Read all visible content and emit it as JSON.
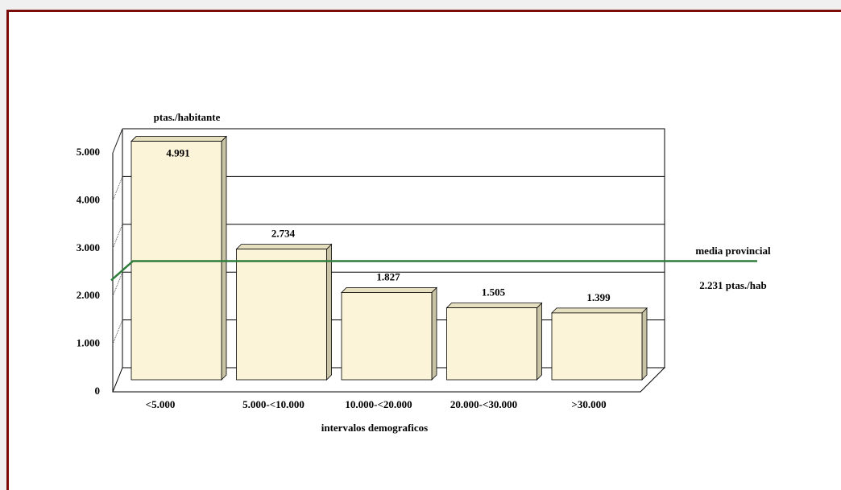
{
  "chart_data": {
    "type": "bar3d",
    "y_label": "ptas./habitante",
    "x_label": "intervalos demograficos",
    "categories": [
      "<5.000",
      "5.000-<10.000",
      "10.000-<20.000",
      "20.000-<30.000",
      ">30.000"
    ],
    "values": [
      4991,
      2734,
      1827,
      1505,
      1399
    ],
    "value_labels": [
      "4.991",
      "2.734",
      "1.827",
      "1.505",
      "1.399"
    ],
    "color": "#fbf4d8",
    "ylim": [
      0,
      5000
    ],
    "yticks": [
      0,
      {
        "value": 1000,
        "label": "1.000"
      },
      {
        "value": 2000,
        "label": "2.000"
      },
      {
        "value": 3000,
        "label": "3.000"
      },
      {
        "value": 4000,
        "label": "4.000"
      },
      {
        "value": 5000,
        "label": "5.000"
      }
    ],
    "grid": true,
    "reference_line": {
      "value": 2231,
      "label": "media provincial",
      "value_label": "2.231 ptas./hab",
      "color": "#2e7d3a"
    }
  }
}
